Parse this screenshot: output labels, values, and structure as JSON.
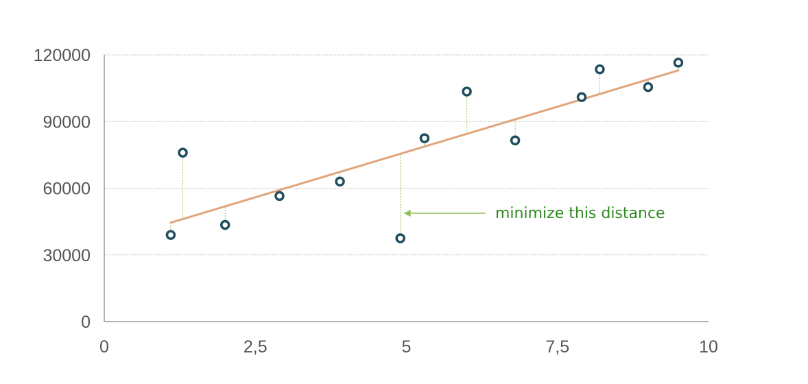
{
  "chart_data": {
    "type": "scatter",
    "title": "",
    "xlabel": "",
    "ylabel": "",
    "xlim": [
      0,
      10
    ],
    "ylim": [
      0,
      120000
    ],
    "x_ticks": [
      0,
      2.5,
      5,
      7.5,
      10
    ],
    "x_tick_labels": [
      "0",
      "2,5",
      "5",
      "7,5",
      "10"
    ],
    "y_ticks": [
      0,
      30000,
      60000,
      90000,
      120000
    ],
    "y_tick_labels": [
      "0",
      "30000",
      "60000",
      "90000",
      "120000"
    ],
    "grid": "horizontal dotted",
    "series": [
      {
        "points": [
          {
            "x": 1.1,
            "y": 39000
          },
          {
            "x": 1.3,
            "y": 76000
          },
          {
            "x": 2.0,
            "y": 43500
          },
          {
            "x": 2.9,
            "y": 56500
          },
          {
            "x": 3.9,
            "y": 63000
          },
          {
            "x": 4.9,
            "y": 37500
          },
          {
            "x": 5.3,
            "y": 82500
          },
          {
            "x": 6.0,
            "y": 103500
          },
          {
            "x": 6.8,
            "y": 81500
          },
          {
            "x": 7.9,
            "y": 101000
          },
          {
            "x": 8.2,
            "y": 113500
          },
          {
            "x": 9.0,
            "y": 105500
          },
          {
            "x": 9.5,
            "y": 116500
          }
        ]
      }
    ],
    "regression_line": {
      "x": [
        1.1,
        9.5
      ],
      "y": [
        44500,
        113000
      ]
    },
    "annotation": {
      "text": "minimize this distance",
      "points_to_x": 4.9
    }
  },
  "colors": {
    "point_fill": "#ffffff",
    "point_stroke": "#1f4e5c",
    "regression_line": "#e0a37a",
    "residual_line": "#8fbf5a",
    "annotation_text": "#2e8b1f",
    "annotation_arrow": "#8fbf5a",
    "grid": "#bbbbbb",
    "axis": "#999999",
    "tick_label": "#555555"
  }
}
